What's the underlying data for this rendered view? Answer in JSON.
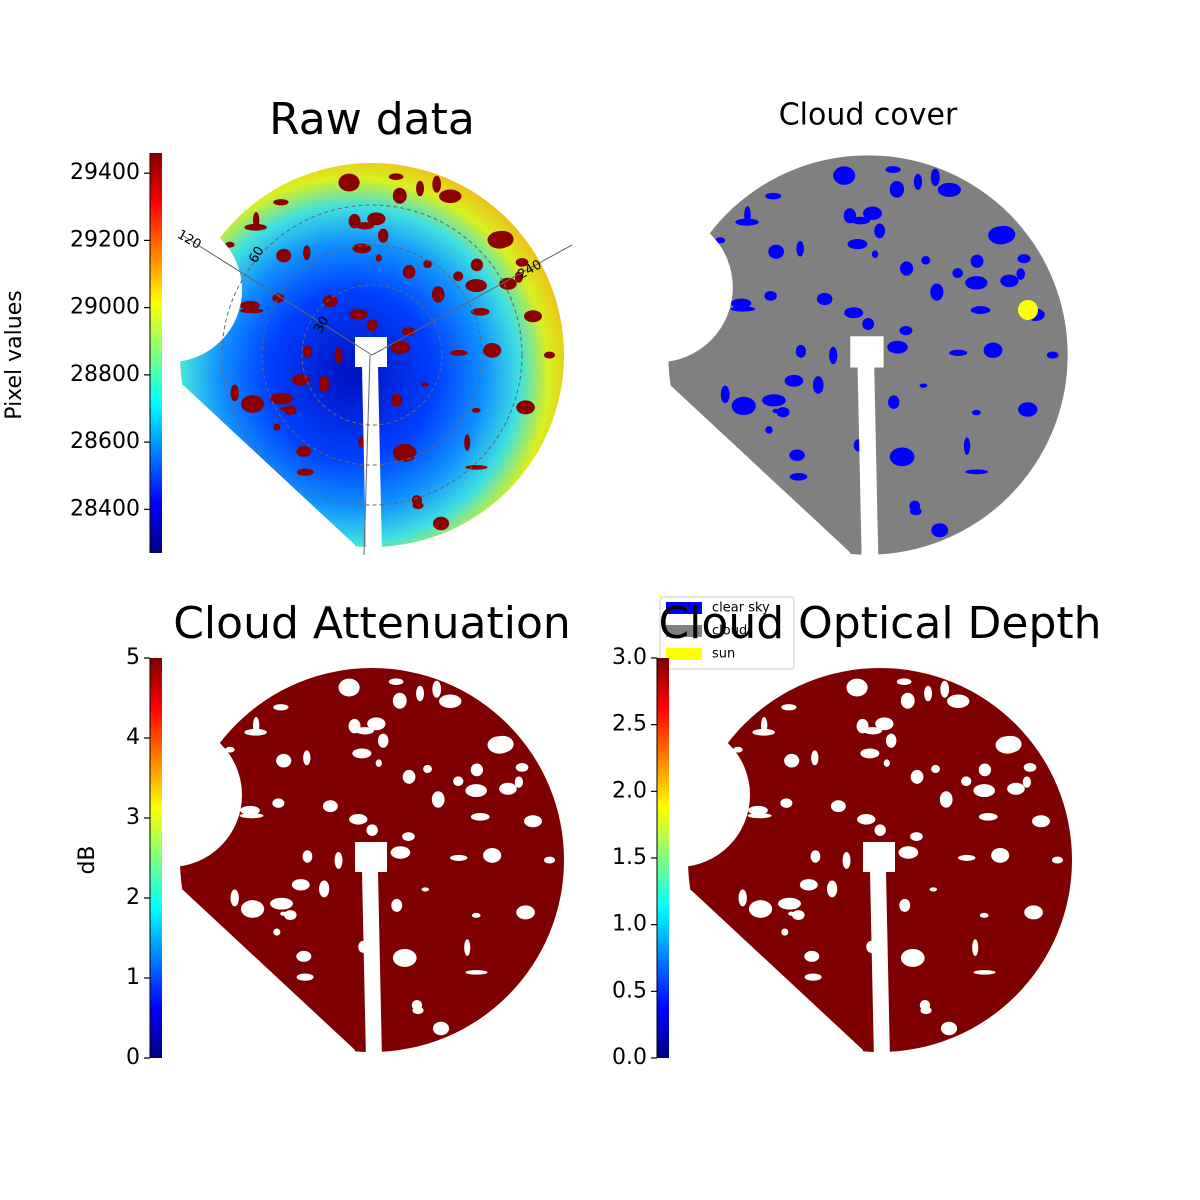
{
  "chart_data": [
    {
      "type": "image",
      "title": "Raw data",
      "colorbar_label": "Pixel values",
      "colormap": "jet",
      "ylim": [
        28270,
        29460
      ],
      "yticks": [
        28400,
        28600,
        28800,
        29000,
        29200,
        29400
      ],
      "polar_labels": [
        "120",
        "60",
        "240",
        "30"
      ]
    },
    {
      "type": "image",
      "title": "Cloud cover",
      "series": [
        {
          "name": "clear sky",
          "color": "#0000ff"
        },
        {
          "name": "cloud",
          "color": "#808080"
        },
        {
          "name": "sun",
          "color": "#ffff00"
        }
      ]
    },
    {
      "type": "image",
      "title": "Cloud Attenuation",
      "colorbar_label": "dB",
      "colormap": "jet",
      "ylim": [
        0,
        5
      ],
      "yticks": [
        0,
        1,
        2,
        3,
        4,
        5
      ]
    },
    {
      "type": "image",
      "title": "Cloud Optical Depth",
      "colormap": "jet",
      "ylim": [
        0,
        3
      ],
      "yticks": [
        {
          "value": 0,
          "label": "0.0"
        },
        {
          "value": 0.5,
          "label": "0.5"
        },
        {
          "value": 1,
          "label": "1.0"
        },
        {
          "value": 1.5,
          "label": "1.5"
        },
        {
          "value": 2,
          "label": "2.0"
        },
        {
          "value": 2.5,
          "label": "2.5"
        },
        {
          "value": 3,
          "label": "3.0"
        }
      ]
    }
  ]
}
